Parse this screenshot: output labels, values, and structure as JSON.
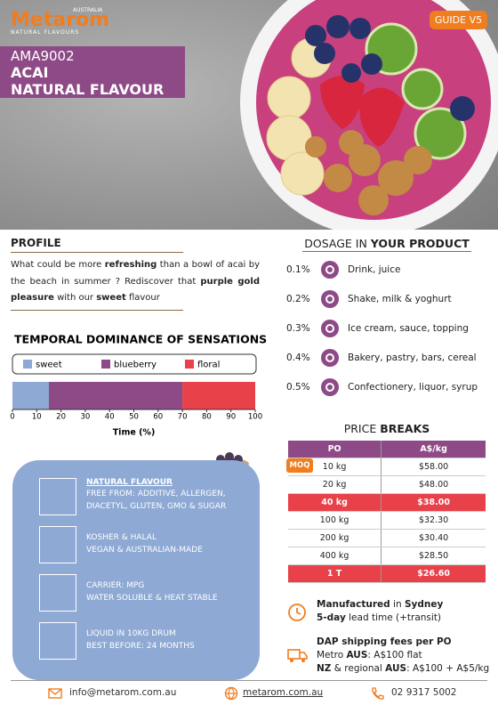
{
  "header": {
    "brand": "Metarom",
    "country": "AUSTRALIA",
    "tagline": "NATURAL FLAVOURS",
    "guide": "GUIDE V5",
    "code": "AMA9002",
    "name": "ACAI",
    "subtitle": "NATURAL FLAVOUR"
  },
  "profile": {
    "title": "PROFILE",
    "text": [
      {
        "t": "What could be more "
      },
      {
        "t": "refreshing",
        "b": true
      },
      {
        "t": " than a bowl of acai by the beach in summer ? Rediscover that "
      },
      {
        "t": "purple gold pleasure",
        "b": true
      },
      {
        "t": " with our "
      },
      {
        "t": "sweet",
        "b": true
      },
      {
        "t": " flavour"
      }
    ]
  },
  "dosage": {
    "title": [
      {
        "t": "DOSAGE IN "
      },
      {
        "t": "YOUR PRODUCT",
        "b": true
      }
    ],
    "rows": [
      {
        "pct": "0.1%",
        "use": "Drink, juice"
      },
      {
        "pct": "0.2%",
        "use": "Shake, milk & yoghurt"
      },
      {
        "pct": "0.3%",
        "use": "Ice cream, sauce, topping"
      },
      {
        "pct": "0.4%",
        "use": "Bakery, pastry, bars, cereal"
      },
      {
        "pct": "0.5%",
        "use": "Confectionery, liquor, syrup"
      }
    ]
  },
  "chart_data": {
    "type": "stacked-bar",
    "title": "TEMPORAL DOMINANCE OF SENSATIONS",
    "xlabel": "Time (%)",
    "series": [
      {
        "name": "sweet",
        "color": "#8ea9d4",
        "values": [
          15
        ]
      },
      {
        "name": "blueberry",
        "color": "#8e4a86",
        "values": [
          55
        ]
      },
      {
        "name": "floral",
        "color": "#e8414a",
        "values": [
          30
        ]
      }
    ],
    "xlim": [
      0,
      100
    ],
    "xticks": [
      0,
      10,
      20,
      30,
      40,
      50,
      60,
      70,
      80,
      90,
      100
    ]
  },
  "price": {
    "title": [
      {
        "t": "PRICE "
      },
      {
        "t": "BREAKS",
        "b": true
      }
    ],
    "columns": [
      "PO",
      "A$/kg"
    ],
    "moq": "MOQ",
    "rows": [
      {
        "cells": [
          "10 kg",
          "$58.00"
        ],
        "highlight": false
      },
      {
        "cells": [
          "20 kg",
          "$48.00"
        ],
        "highlight": false
      },
      {
        "cells": [
          "40 kg",
          "$38.00"
        ],
        "highlight": true
      },
      {
        "cells": [
          "100 kg",
          "$32.30"
        ],
        "highlight": false
      },
      {
        "cells": [
          "200 kg",
          "$30.40"
        ],
        "highlight": false
      },
      {
        "cells": [
          "400 kg",
          "$28.50"
        ],
        "highlight": false
      },
      {
        "cells": [
          "1 T",
          "$26.60"
        ],
        "highlight": true
      }
    ]
  },
  "features": {
    "heading": "NATURAL FLAVOUR",
    "items": [
      [
        "FREE FROM: ADDITIVE, ALLERGEN,",
        "DIACETYL,  GLUTEN, GMO & SUGAR"
      ],
      [
        "KOSHER & HALAL",
        "VEGAN & AUSTRALIAN-MADE"
      ],
      [
        "CARRIER: MPG",
        "WATER SOLUBLE & HEAT STABLE"
      ],
      [
        "LIQUID IN 10KG DRUM",
        "BEST BEFORE: 24 MONTHS"
      ]
    ]
  },
  "logistics": {
    "made": [
      [
        {
          "t": "Manufactured",
          "b": true
        },
        {
          "t": " in "
        },
        {
          "t": "Sydney",
          "b": true
        }
      ],
      [
        {
          "t": "5-day",
          "b": true
        },
        {
          "t": " lead time (+transit)"
        }
      ]
    ],
    "shipping": [
      [
        {
          "t": "DAP shipping fees per PO",
          "b": true
        }
      ],
      [
        {
          "t": "Metro "
        },
        {
          "t": "AUS",
          "b": true
        },
        {
          "t": ": A$100 flat"
        }
      ],
      [
        {
          "t": "NZ",
          "b": true
        },
        {
          "t": " & regional "
        },
        {
          "t": "AUS",
          "b": true
        },
        {
          "t": ": A$100 + A$5/kg"
        }
      ]
    ]
  },
  "footer": {
    "email": "info@metarom.com.au",
    "web": "metarom.com.au",
    "phone": "02 9317 5002"
  }
}
